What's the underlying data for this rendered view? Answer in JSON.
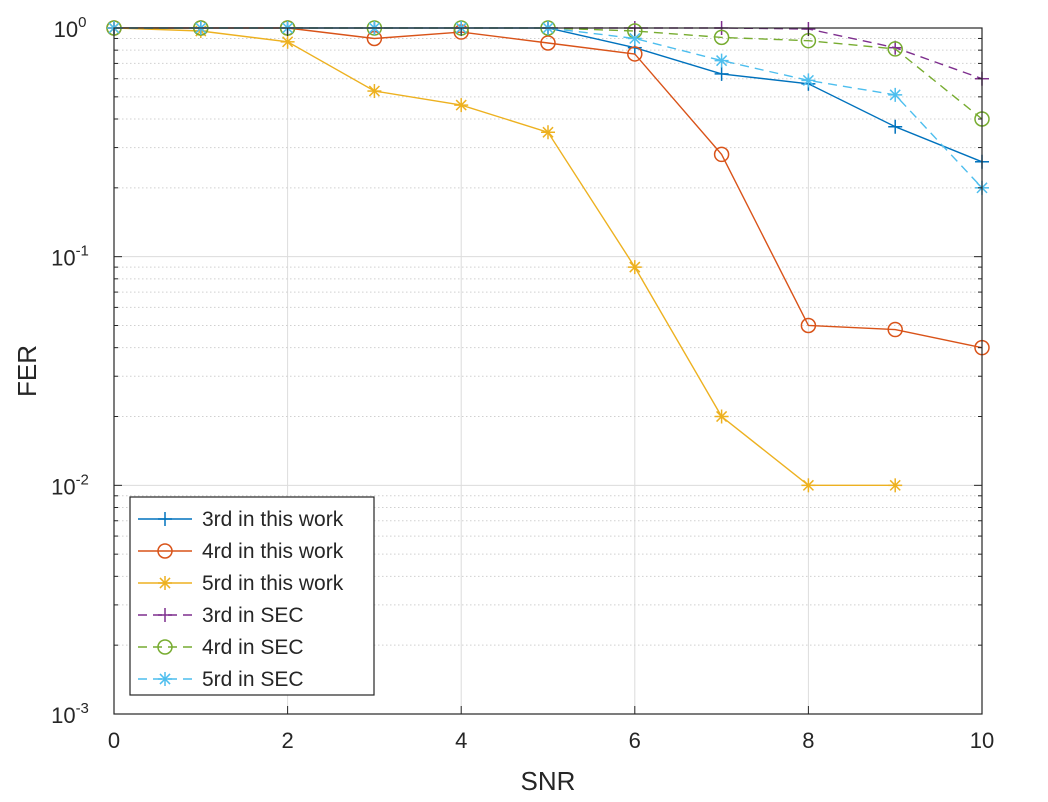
{
  "chart_data": {
    "type": "line",
    "xlabel": "SNR",
    "ylabel": "FER",
    "xlim": [
      0,
      10
    ],
    "ylim": [
      0.001,
      1
    ],
    "y_scale": "log",
    "grid": true,
    "legend_position": "bottom-left",
    "x_ticks": [
      "0",
      "2",
      "4",
      "6",
      "8",
      "10"
    ],
    "y_ticks": [
      {
        "base": "10",
        "exp": "0"
      },
      {
        "base": "10",
        "exp": "-1"
      },
      {
        "base": "10",
        "exp": "-2"
      },
      {
        "base": "10",
        "exp": "-3"
      }
    ],
    "series": [
      {
        "name": "3rd in this work",
        "color": "#0072BD",
        "marker": "plus",
        "dash": "solid",
        "x": [
          0,
          1,
          2,
          3,
          4,
          5,
          6,
          7,
          8,
          9,
          10
        ],
        "y": [
          1,
          1,
          1,
          1,
          1,
          1,
          0.82,
          0.63,
          0.57,
          0.37,
          0.26
        ]
      },
      {
        "name": "4rd in this work",
        "color": "#D95319",
        "marker": "circle",
        "dash": "solid",
        "x": [
          0,
          1,
          2,
          3,
          4,
          5,
          6,
          7,
          8,
          9,
          10
        ],
        "y": [
          1,
          1,
          1,
          0.9,
          0.96,
          0.86,
          0.77,
          0.28,
          0.05,
          0.048,
          0.04
        ]
      },
      {
        "name": "5rd in this work",
        "color": "#EDB120",
        "marker": "asterisk",
        "dash": "solid",
        "x": [
          0,
          1,
          2,
          3,
          4,
          5,
          6,
          7,
          8,
          9
        ],
        "y": [
          1,
          0.97,
          0.87,
          0.53,
          0.46,
          0.35,
          0.09,
          0.02,
          0.01,
          0.01
        ]
      },
      {
        "name": "3rd in SEC",
        "color": "#7E2F8E",
        "marker": "plus",
        "dash": "dashed",
        "x": [
          0,
          1,
          2,
          3,
          4,
          5,
          6,
          7,
          8,
          9,
          10
        ],
        "y": [
          1,
          1,
          1,
          1,
          1,
          1,
          1,
          1,
          0.99,
          0.82,
          0.6
        ]
      },
      {
        "name": "4rd in SEC",
        "color": "#77AC30",
        "marker": "circle",
        "dash": "dashed",
        "x": [
          0,
          1,
          2,
          3,
          4,
          5,
          6,
          7,
          8,
          9,
          10
        ],
        "y": [
          1,
          1,
          1,
          1,
          1,
          1,
          0.97,
          0.91,
          0.88,
          0.81,
          0.4
        ]
      },
      {
        "name": "5rd in SEC",
        "color": "#4DBEEE",
        "marker": "asterisk",
        "dash": "dashed",
        "x": [
          0,
          1,
          2,
          3,
          4,
          5,
          6,
          7,
          8,
          9,
          10
        ],
        "y": [
          1,
          1,
          1,
          1,
          1,
          1,
          0.9,
          0.72,
          0.59,
          0.51,
          0.2
        ]
      }
    ]
  }
}
